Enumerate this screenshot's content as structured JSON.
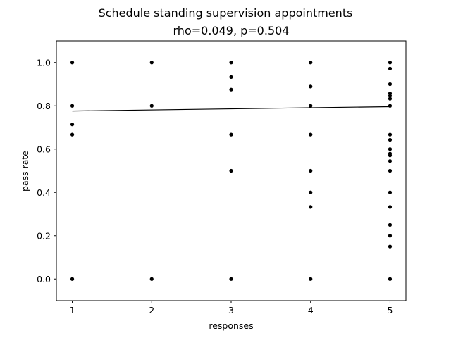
{
  "chart_data": {
    "type": "scatter",
    "title": "Schedule standing supervision appointments",
    "subtitle": "rho=0.049, p=0.504",
    "xlabel": "responses",
    "ylabel": "pass rate",
    "xlim": [
      0.8,
      5.2
    ],
    "ylim": [
      -0.1,
      1.1
    ],
    "xticks": [
      1,
      2,
      3,
      4,
      5
    ],
    "xtick_labels": [
      "1",
      "2",
      "3",
      "4",
      "5"
    ],
    "yticks": [
      0.0,
      0.2,
      0.4,
      0.6,
      0.8,
      1.0
    ],
    "ytick_labels": [
      "0.0",
      "0.2",
      "0.4",
      "0.6",
      "0.8",
      "1.0"
    ],
    "grid": false,
    "legend": "none",
    "marker_color": "#000000",
    "line_color": "#000000",
    "points": [
      {
        "x": 1,
        "y": 1.0
      },
      {
        "x": 1,
        "y": 0.8
      },
      {
        "x": 1,
        "y": 0.714
      },
      {
        "x": 1,
        "y": 0.667
      },
      {
        "x": 1,
        "y": 0.0
      },
      {
        "x": 2,
        "y": 1.0
      },
      {
        "x": 2,
        "y": 0.8
      },
      {
        "x": 2,
        "y": 0.0
      },
      {
        "x": 3,
        "y": 1.0
      },
      {
        "x": 3,
        "y": 0.933
      },
      {
        "x": 3,
        "y": 0.875
      },
      {
        "x": 3,
        "y": 0.667
      },
      {
        "x": 3,
        "y": 0.5
      },
      {
        "x": 3,
        "y": 0.0
      },
      {
        "x": 4,
        "y": 1.0
      },
      {
        "x": 4,
        "y": 0.889
      },
      {
        "x": 4,
        "y": 0.8
      },
      {
        "x": 4,
        "y": 0.667
      },
      {
        "x": 4,
        "y": 0.5
      },
      {
        "x": 4,
        "y": 0.4
      },
      {
        "x": 4,
        "y": 0.333
      },
      {
        "x": 4,
        "y": 0.0
      },
      {
        "x": 5,
        "y": 1.0
      },
      {
        "x": 5,
        "y": 0.972
      },
      {
        "x": 5,
        "y": 0.9
      },
      {
        "x": 5,
        "y": 0.857
      },
      {
        "x": 5,
        "y": 0.846
      },
      {
        "x": 5,
        "y": 0.833
      },
      {
        "x": 5,
        "y": 0.8
      },
      {
        "x": 5,
        "y": 0.667
      },
      {
        "x": 5,
        "y": 0.643
      },
      {
        "x": 5,
        "y": 0.6
      },
      {
        "x": 5,
        "y": 0.579
      },
      {
        "x": 5,
        "y": 0.571
      },
      {
        "x": 5,
        "y": 0.545
      },
      {
        "x": 5,
        "y": 0.5
      },
      {
        "x": 5,
        "y": 0.4
      },
      {
        "x": 5,
        "y": 0.333
      },
      {
        "x": 5,
        "y": 0.25
      },
      {
        "x": 5,
        "y": 0.2
      },
      {
        "x": 5,
        "y": 0.15
      },
      {
        "x": 5,
        "y": 0.0
      }
    ],
    "trend_line": {
      "x": [
        1,
        5
      ],
      "y": [
        0.776,
        0.796
      ]
    }
  }
}
